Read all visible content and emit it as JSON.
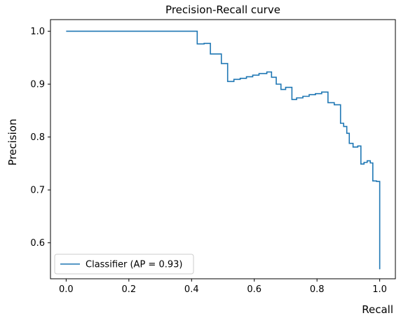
{
  "chart_data": {
    "type": "line",
    "step": "post",
    "title": "Precision-Recall curve",
    "xlabel": "Recall",
    "ylabel": "Precision",
    "xlim": [
      -0.05,
      1.05
    ],
    "ylim": [
      0.532,
      1.022
    ],
    "xticks": [
      0.0,
      0.2,
      0.4,
      0.6,
      0.8,
      1.0
    ],
    "xtick_labels": [
      "0.0",
      "0.2",
      "0.4",
      "0.6",
      "0.8",
      "1.0"
    ],
    "yticks": [
      0.6,
      0.7,
      0.8,
      0.9,
      1.0
    ],
    "ytick_labels": [
      "0.6",
      "0.7",
      "0.8",
      "0.9",
      "1.0"
    ],
    "grid": false,
    "legend_position": "lower-left",
    "series": [
      {
        "name": "Classifier (AP = 0.93)",
        "color": "#1f77b4",
        "x": [
          0.0,
          0.418,
          0.418,
          0.44,
          0.44,
          0.46,
          0.46,
          0.495,
          0.495,
          0.515,
          0.515,
          0.535,
          0.535,
          0.555,
          0.555,
          0.575,
          0.575,
          0.595,
          0.595,
          0.615,
          0.615,
          0.64,
          0.64,
          0.655,
          0.655,
          0.67,
          0.67,
          0.685,
          0.685,
          0.7,
          0.7,
          0.72,
          0.72,
          0.735,
          0.735,
          0.755,
          0.755,
          0.775,
          0.775,
          0.795,
          0.795,
          0.815,
          0.815,
          0.835,
          0.835,
          0.855,
          0.855,
          0.875,
          0.875,
          0.885,
          0.885,
          0.895,
          0.895,
          0.903,
          0.903,
          0.915,
          0.915,
          0.93,
          0.93,
          0.94,
          0.94,
          0.95,
          0.95,
          0.96,
          0.96,
          0.97,
          0.97,
          0.978,
          0.978,
          0.99,
          0.99,
          1.0,
          1.0
        ],
        "y": [
          1.0,
          1.0,
          0.976,
          0.976,
          0.977,
          0.977,
          0.957,
          0.957,
          0.939,
          0.939,
          0.905,
          0.905,
          0.909,
          0.909,
          0.911,
          0.911,
          0.914,
          0.914,
          0.917,
          0.917,
          0.92,
          0.92,
          0.923,
          0.923,
          0.913,
          0.913,
          0.9,
          0.9,
          0.89,
          0.89,
          0.894,
          0.894,
          0.871,
          0.871,
          0.874,
          0.874,
          0.877,
          0.877,
          0.88,
          0.88,
          0.882,
          0.882,
          0.885,
          0.885,
          0.865,
          0.865,
          0.861,
          0.861,
          0.826,
          0.826,
          0.82,
          0.82,
          0.807,
          0.807,
          0.788,
          0.788,
          0.781,
          0.781,
          0.783,
          0.783,
          0.749,
          0.749,
          0.752,
          0.752,
          0.755,
          0.755,
          0.751,
          0.751,
          0.717,
          0.717,
          0.716,
          0.716,
          0.55
        ]
      }
    ]
  }
}
